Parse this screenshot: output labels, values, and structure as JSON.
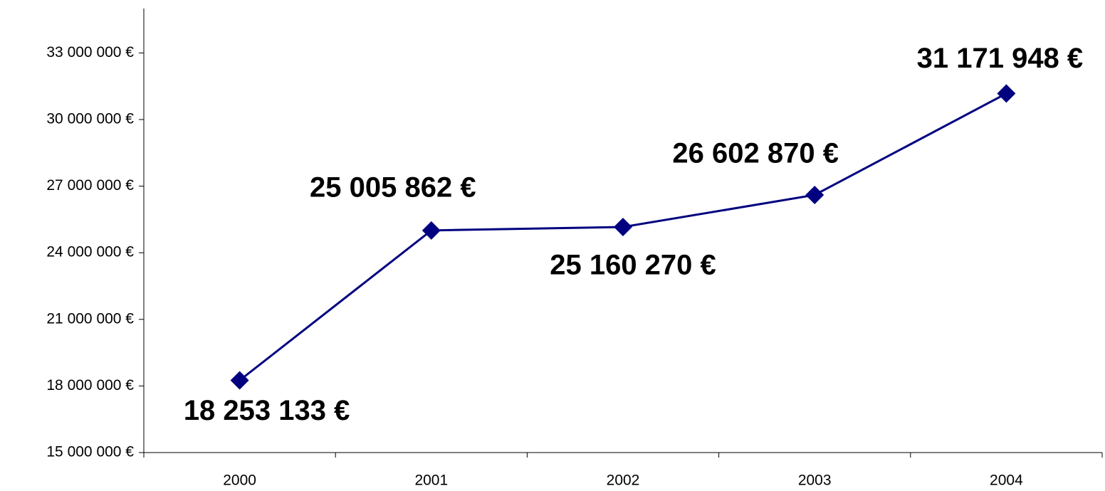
{
  "chart_data": {
    "type": "line",
    "categories": [
      "2000",
      "2001",
      "2002",
      "2003",
      "2004"
    ],
    "series": [
      {
        "color": "#000080",
        "values": [
          18253133,
          25005862,
          25160270,
          26602870,
          31171948
        ],
        "value_labels": [
          "18 253 133 €",
          "25 005 862 €",
          "25 160 270 €",
          "26 602 870 €",
          "31 171 948 €"
        ]
      }
    ],
    "ylim": [
      15000000,
      35000000
    ],
    "yticks": [
      {
        "value": 15000000,
        "label": "15 000 000 €"
      },
      {
        "value": 18000000,
        "label": "18 000 000 €"
      },
      {
        "value": 21000000,
        "label": "21 000 000 €"
      },
      {
        "value": 24000000,
        "label": "24 000 000 €"
      },
      {
        "value": 27000000,
        "label": "27 000 000 €"
      },
      {
        "value": 30000000,
        "label": "30 000 000 €"
      },
      {
        "value": 33000000,
        "label": "33 000 000 €"
      }
    ],
    "grid": false
  }
}
